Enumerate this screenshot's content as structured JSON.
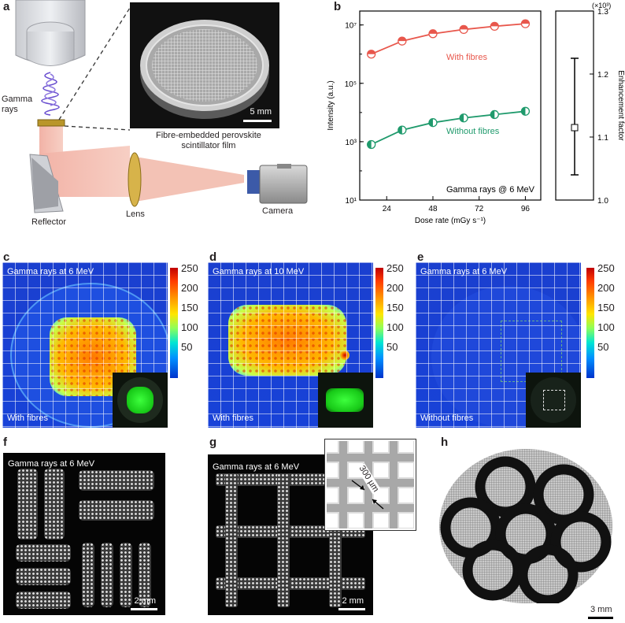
{
  "panels": {
    "a": {
      "label": "a",
      "gamma_label": "Gamma\nrays",
      "film_caption": "Fibre-embedded perovskite\nscintillator film",
      "scale_bar": "5 mm",
      "reflector": "Reflector",
      "lens": "Lens",
      "camera": "Camera"
    },
    "b": {
      "label": "b"
    },
    "c": {
      "label": "c",
      "title": "Gamma rays at 6 MeV",
      "footer": "With fibres"
    },
    "d": {
      "label": "d",
      "title": "Gamma rays at 10 MeV",
      "footer": "With fibres"
    },
    "e": {
      "label": "e",
      "title": "Gamma rays at 6 MeV",
      "footer": "Without fibres"
    },
    "f": {
      "label": "f",
      "title": "Gamma rays at 6 MeV",
      "scale_bar": "2 mm"
    },
    "g": {
      "label": "g",
      "title": "Gamma rays at 6 MeV",
      "scale_bar": "2 mm",
      "inset_label": "300 µm"
    },
    "h": {
      "label": "h",
      "scale_bar": "3 mm"
    }
  },
  "colorbar_ticks": [
    "250",
    "200",
    "150",
    "100",
    "50"
  ],
  "chart_data": [
    {
      "type": "line",
      "xlabel": "Dose rate (mGy s⁻¹)",
      "ylabel": "Intensity (a.u.)",
      "xticks": [
        "24",
        "48",
        "72",
        "96"
      ],
      "yscale": "log",
      "yticks": [
        "10¹",
        "10³",
        "10⁵",
        "10⁷"
      ],
      "ylim": [
        10,
        30000000
      ],
      "xlim": [
        10,
        104
      ],
      "annotation": "Gamma rays @ 6 MeV",
      "series": [
        {
          "name": "With fibres",
          "color": "#e8574c",
          "x": [
            16,
            32,
            48,
            64,
            80,
            96
          ],
          "values": [
            1000000,
            2800000,
            5000000,
            7000000,
            9000000,
            11000000
          ]
        },
        {
          "name": "Without fibres",
          "color": "#1f9a6c",
          "x": [
            16,
            32,
            48,
            64,
            80,
            96
          ],
          "values": [
            800,
            2500,
            4500,
            6500,
            8500,
            11000
          ]
        }
      ]
    },
    {
      "type": "scatter",
      "ylabel": "Enhancement factor",
      "yunit": "(×10³)",
      "yticks": [
        "1.0",
        "1.1",
        "1.2",
        "1.3"
      ],
      "ylim": [
        1.0,
        1.3
      ],
      "point": {
        "value": 1.115,
        "error_low": 1.04,
        "error_high": 1.225
      }
    }
  ]
}
